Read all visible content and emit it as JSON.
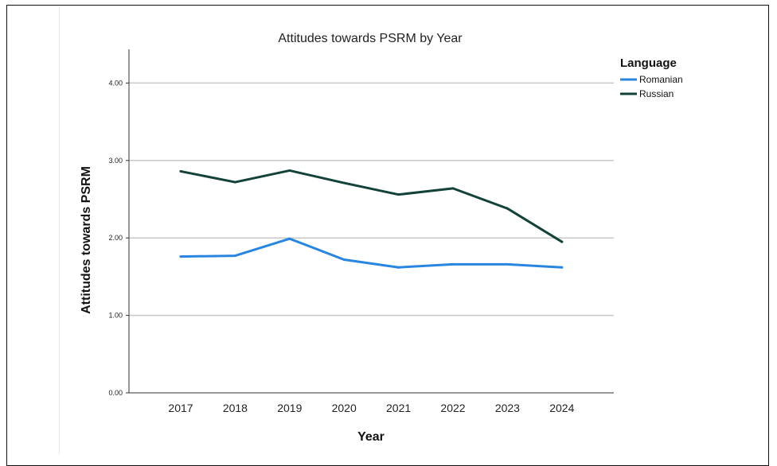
{
  "chart_data": {
    "type": "line",
    "title": "Attitudes towards PSRM by Year",
    "xlabel": "Year",
    "ylabel": "Attitudes towards PSRM",
    "categories": [
      "2017",
      "2018",
      "2019",
      "2020",
      "2021",
      "2022",
      "2023",
      "2024"
    ],
    "y_ticks": [
      "0.00",
      "1.00",
      "2.00",
      "3.00",
      "4.00"
    ],
    "ylim": [
      0,
      4.45
    ],
    "grid": "horizontal",
    "legend_title": "Language",
    "legend_position": "top-right",
    "series": [
      {
        "name": "Romanian",
        "color": "#2986e0",
        "values": [
          1.76,
          1.77,
          1.99,
          1.72,
          1.62,
          1.66,
          1.66,
          1.62
        ]
      },
      {
        "name": "Russian",
        "color": "#13423a",
        "values": [
          2.86,
          2.72,
          2.87,
          2.71,
          2.56,
          2.64,
          2.38,
          1.95
        ]
      }
    ]
  }
}
